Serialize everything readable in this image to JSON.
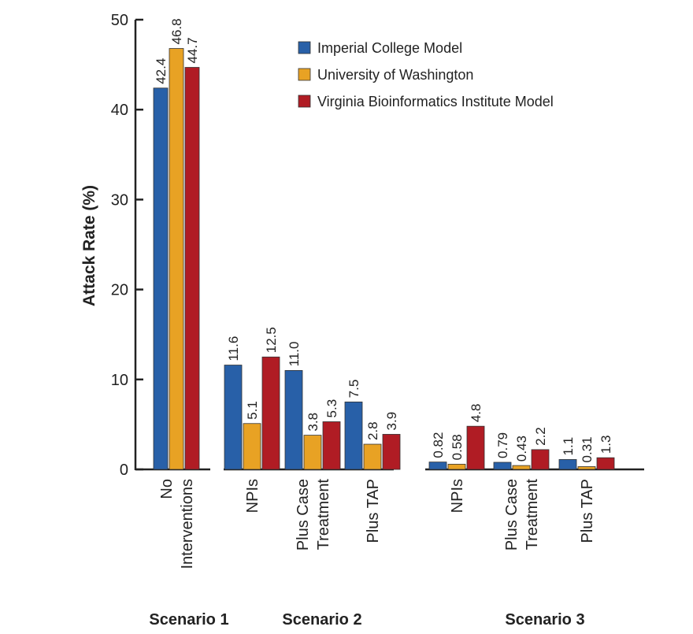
{
  "chart_data": {
    "type": "bar",
    "title": "",
    "xlabel": "",
    "ylabel": "Attack Rate (%)",
    "ylim": [
      0,
      50
    ],
    "yticks": [
      0,
      10,
      20,
      30,
      40,
      50
    ],
    "grid": false,
    "legend_position": "top-right",
    "groups": [
      {
        "label": "Scenario 1",
        "categories": [
          [
            "No",
            "Interventions"
          ]
        ]
      },
      {
        "label": "Scenario 2",
        "categories": [
          [
            "NPIs"
          ],
          [
            "Plus Case",
            "Treatment"
          ],
          [
            "Plus TAP"
          ]
        ]
      },
      {
        "label": "Scenario 3",
        "categories": [
          [
            "NPIs"
          ],
          [
            "Plus Case",
            "Treatment"
          ],
          [
            "Plus TAP"
          ]
        ]
      }
    ],
    "categories": [
      "Scenario 1: No Interventions",
      "Scenario 2: NPIs",
      "Scenario 2: Plus Case Treatment",
      "Scenario 2: Plus TAP",
      "Scenario 3: NPIs",
      "Scenario 3: Plus Case Treatment",
      "Scenario 3: Plus TAP"
    ],
    "series": [
      {
        "name": "Imperial College Model",
        "color": "#2860a8",
        "values": [
          42.4,
          11.6,
          11.0,
          7.5,
          0.82,
          0.79,
          1.1
        ],
        "labels": [
          "42.4",
          "11.6",
          "11.0",
          "7.5",
          "0.82",
          "0.79",
          "1.1"
        ]
      },
      {
        "name": "University of Washington",
        "color": "#e8a224",
        "values": [
          46.8,
          5.1,
          3.8,
          2.8,
          0.58,
          0.43,
          0.31
        ],
        "labels": [
          "46.8",
          "5.1",
          "3.8",
          "2.8",
          "0.58",
          "0.43",
          "0.31"
        ]
      },
      {
        "name": "Virginia Bioinformatics Institute Model",
        "color": "#b01c24",
        "values": [
          44.7,
          12.5,
          5.3,
          3.9,
          4.8,
          2.2,
          1.3
        ],
        "labels": [
          "44.7",
          "12.5",
          "5.3",
          "3.9",
          "4.8",
          "2.2",
          "1.3"
        ]
      }
    ]
  }
}
